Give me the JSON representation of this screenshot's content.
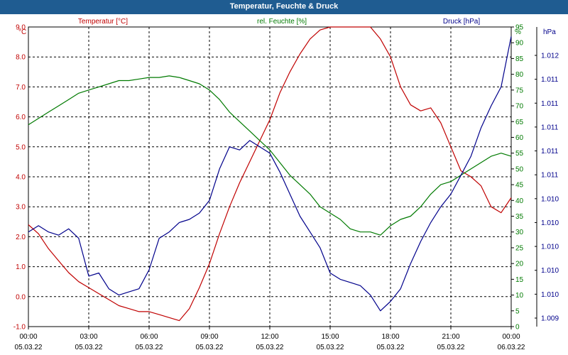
{
  "colors": {
    "title_bg": "#1f5c91",
    "temperature": "#c00000",
    "humidity": "#007a00",
    "pressure": "#00008b",
    "grid": "#000000"
  },
  "chart_data": {
    "type": "line",
    "title": "Temperatur, Feuchte & Druck",
    "grid": true,
    "x_ticks": [
      {
        "time": "00:00",
        "date": "05.03.22"
      },
      {
        "time": "03:00",
        "date": "05.03.22"
      },
      {
        "time": "06:00",
        "date": "05.03.22"
      },
      {
        "time": "09:00",
        "date": "05.03.22"
      },
      {
        "time": "12:00",
        "date": "05.03.22"
      },
      {
        "time": "15:00",
        "date": "05.03.22"
      },
      {
        "time": "18:00",
        "date": "05.03.22"
      },
      {
        "time": "21:00",
        "date": "05.03.22"
      },
      {
        "time": "00:00",
        "date": "06.03.22"
      }
    ],
    "xlim_hours": [
      0,
      24
    ],
    "axes": {
      "left": {
        "unit": "°C",
        "ylim": [
          -1.0,
          9.0
        ],
        "ticks": [
          "-1.0",
          "0.0",
          "1.0",
          "2.0",
          "3.0",
          "4.0",
          "5.0",
          "6.0",
          "7.0",
          "8.0",
          "9.0"
        ]
      },
      "right1": {
        "unit": "%",
        "ylim": [
          0,
          95
        ],
        "ticks": [
          "0",
          "5",
          "10",
          "15",
          "20",
          "25",
          "30",
          "35",
          "40",
          "45",
          "50",
          "55",
          "60",
          "65",
          "70",
          "75",
          "80",
          "85",
          "90",
          "95"
        ]
      },
      "right2": {
        "unit": "hPa",
        "ticks": [
          "1.009",
          "1.010",
          "1.010",
          "1.010",
          "1.010",
          "1.010",
          "1.011",
          "1.011",
          "1.011",
          "1.011",
          "1.011",
          "1.012"
        ]
      }
    },
    "legend": [
      "Temperatur [°C]",
      "rel. Feuchte [%]",
      "Druck [hPa]"
    ],
    "series": [
      {
        "name": "Temperatur [°C]",
        "axis": "left",
        "x": [
          0,
          0.5,
          1,
          1.5,
          2,
          2.5,
          3,
          3.5,
          4,
          4.5,
          5,
          5.5,
          6,
          6.5,
          7,
          7.5,
          8,
          8.5,
          9,
          9.5,
          10,
          10.5,
          11,
          11.5,
          12,
          12.5,
          13,
          13.5,
          14,
          14.5,
          15,
          15.5,
          16,
          16.5,
          17,
          17.5,
          18,
          18.5,
          19,
          19.5,
          20,
          20.5,
          21,
          21.5,
          22,
          22.5,
          23,
          23.5,
          24
        ],
        "values": [
          2.4,
          2.1,
          1.6,
          1.2,
          0.8,
          0.5,
          0.3,
          0.1,
          -0.1,
          -0.3,
          -0.4,
          -0.5,
          -0.5,
          -0.6,
          -0.7,
          -0.8,
          -0.4,
          0.3,
          1.1,
          2.1,
          3.0,
          3.8,
          4.5,
          5.2,
          5.9,
          6.8,
          7.5,
          8.1,
          8.6,
          8.9,
          9.1,
          9.2,
          9.3,
          9.2,
          9.0,
          8.6,
          8.0,
          7.0,
          6.4,
          6.2,
          6.3,
          5.8,
          5.0,
          4.2,
          4.0,
          3.7,
          3.0,
          2.8,
          3.3
        ]
      },
      {
        "name": "rel. Feuchte [%]",
        "axis": "right1",
        "x": [
          0,
          0.5,
          1,
          1.5,
          2,
          2.5,
          3,
          3.5,
          4,
          4.5,
          5,
          5.5,
          6,
          6.5,
          7,
          7.5,
          8,
          8.5,
          9,
          9.5,
          10,
          10.5,
          11,
          11.5,
          12,
          12.5,
          13,
          13.5,
          14,
          14.5,
          15,
          15.5,
          16,
          16.5,
          17,
          17.5,
          18,
          18.5,
          19,
          19.5,
          20,
          20.5,
          21,
          21.5,
          22,
          22.5,
          23,
          23.5,
          24
        ],
        "values": [
          64,
          66,
          68,
          70,
          72,
          74,
          75,
          76,
          77,
          78,
          78,
          78.5,
          79,
          79,
          79.5,
          79,
          78,
          77,
          75,
          72,
          68,
          65,
          62,
          59,
          56,
          52,
          48,
          45,
          42,
          38,
          36,
          34,
          31,
          30,
          30,
          29,
          32,
          34,
          35,
          38,
          42,
          45,
          46,
          48,
          50,
          52,
          54,
          55,
          54
        ]
      },
      {
        "name": "Druck [hPa]",
        "axis": "right2",
        "display_scale": [
          0,
          95
        ],
        "x": [
          0,
          0.5,
          1,
          1.5,
          2,
          2.5,
          3,
          3.5,
          4,
          4.5,
          5,
          5.5,
          6,
          6.5,
          7,
          7.5,
          8,
          8.5,
          9,
          9.5,
          10,
          10.5,
          11,
          11.5,
          12,
          12.5,
          13,
          13.5,
          14,
          14.5,
          15,
          15.5,
          16,
          16.5,
          17,
          17.5,
          18,
          18.5,
          19,
          19.5,
          20,
          20.5,
          21,
          21.5,
          22,
          22.5,
          23,
          23.5,
          24
        ],
        "values": [
          30,
          32,
          30,
          29,
          31,
          28,
          16,
          17,
          12,
          10,
          11,
          12,
          18,
          28,
          30,
          33,
          34,
          36,
          40,
          50,
          57,
          56,
          59,
          57,
          55,
          49,
          42,
          35,
          30,
          25,
          17,
          15,
          14,
          13,
          10,
          5,
          8,
          12,
          20,
          27,
          33,
          38,
          42,
          48,
          54,
          63,
          70,
          76,
          92
        ]
      }
    ]
  }
}
